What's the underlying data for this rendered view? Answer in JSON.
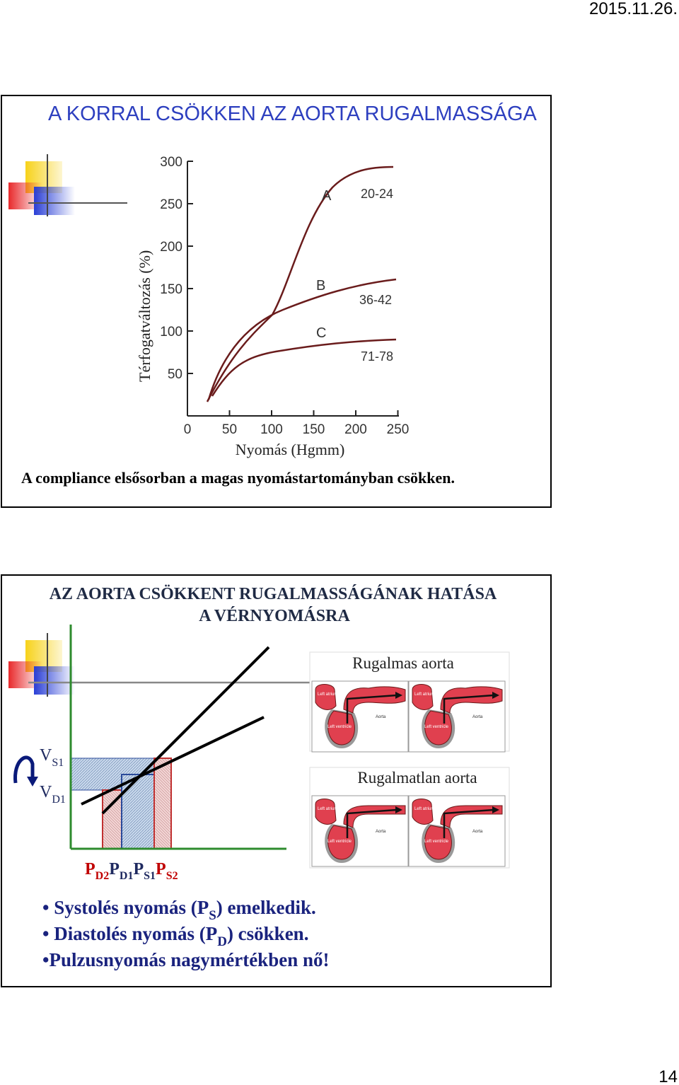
{
  "header": {
    "date": "2015.11.26."
  },
  "slides": [
    {
      "title": "A KORRAL CSÖKKEN AZ AORTA RUGALMASSÁGA",
      "figure": {
        "y_label": "Térfogatváltozás (%)",
        "x_label": "Nyomás (Hgmm)",
        "yticks": [
          50,
          100,
          150,
          200,
          250,
          300
        ],
        "xticks": [
          0,
          50,
          100,
          150,
          200,
          250
        ],
        "curves": [
          {
            "name": "A",
            "age": "20-24"
          },
          {
            "name": "B",
            "age": "36-42"
          },
          {
            "name": "C",
            "age": "71-78"
          }
        ]
      },
      "caption": "A compliance elsősorban a magas nyomástartományban csökken."
    },
    {
      "title_lines": [
        "AZ AORTA CSÖKKENT RUGALMASSÁGÁNAK HATÁSA",
        "A VÉRNYOMÁSRA"
      ],
      "elastic_label": "Rugalmas aorta",
      "stiff_label": "Rugalmatlan aorta",
      "volume_labels": [
        [
          "V",
          "S1"
        ],
        [
          "V",
          "D1"
        ]
      ],
      "pressure_labels": [
        [
          "P",
          "D2"
        ],
        [
          "P",
          "D1"
        ],
        [
          "P",
          "S1"
        ],
        [
          "P",
          "S2"
        ]
      ],
      "hearts": [
        {
          "atrium": "Left atrium",
          "ventricle": "Left ventricle",
          "aorta": "Aorta"
        },
        {
          "atrium": "Left atrium",
          "ventricle": "Left ventricle",
          "aorta": "Aorta"
        },
        {
          "atrium": "Left atrium",
          "ventricle": "Left ventricle",
          "aorta": "Aorta"
        },
        {
          "atrium": "Left atrium",
          "ventricle": "Left ventricle",
          "aorta": "Aorta"
        }
      ],
      "bullets": [
        [
          "• Systolés nyomás (P",
          "S",
          ") emelkedik."
        ],
        [
          "• Diastolés nyomás (P",
          "D",
          ") csökken."
        ],
        [
          "•Pulzusnyomás nagymértékben nő!"
        ]
      ]
    }
  ],
  "page_number": "14"
}
